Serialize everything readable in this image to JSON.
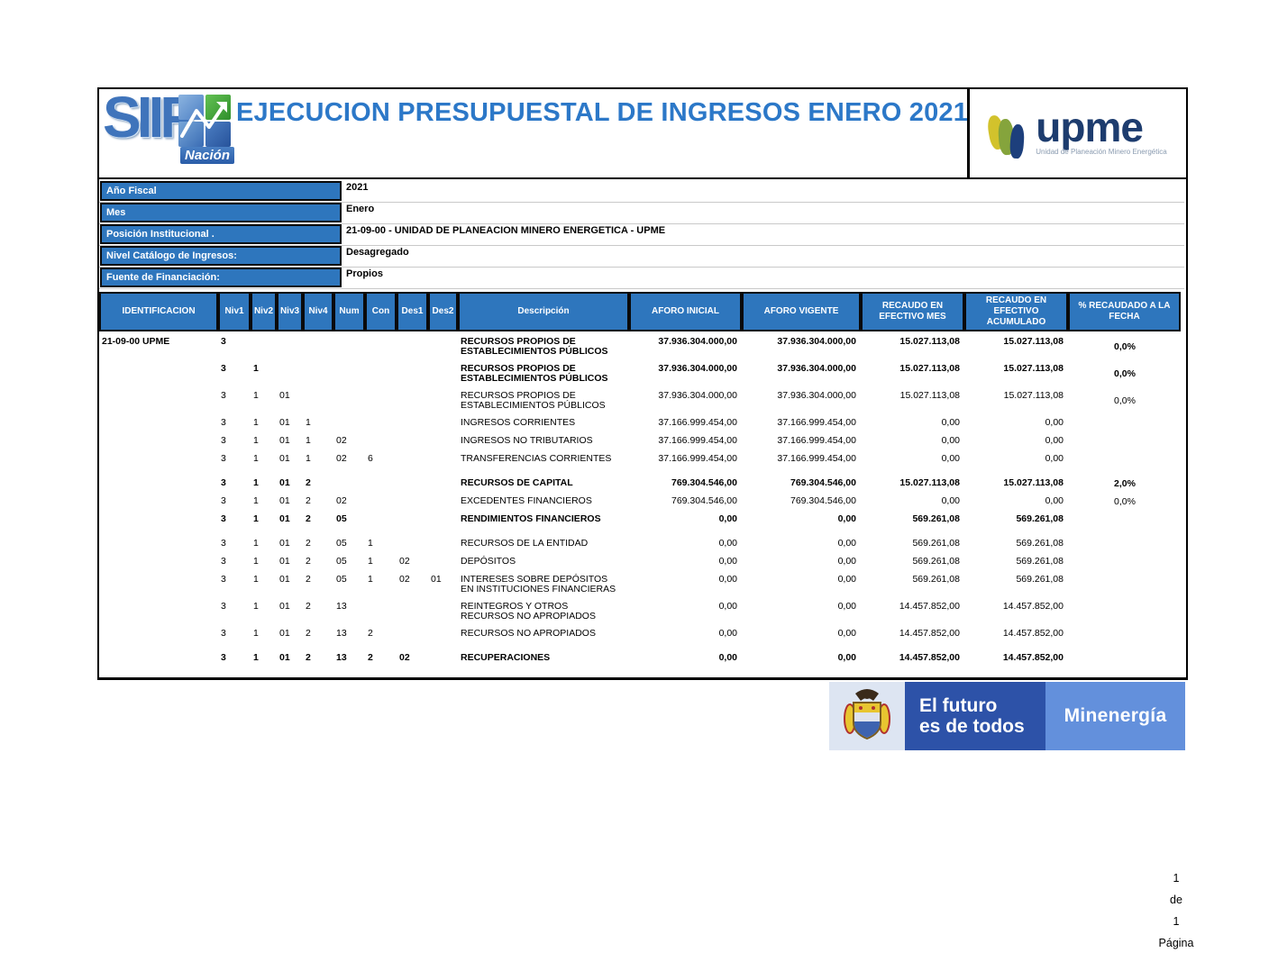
{
  "title": "EJECUCION PRESUPUESTAL DE INGRESOS ENERO 2021",
  "logos": {
    "siif": {
      "text": "SIIF",
      "sub": "Nación"
    },
    "upme": {
      "text": "upme",
      "sub": "Unidad de Planeación Minero Energética"
    },
    "banner": {
      "line1": "El futuro",
      "line2": "es de todos",
      "right": "Minenergía"
    }
  },
  "fields": [
    {
      "label": "Año Fiscal",
      "value": "2021"
    },
    {
      "label": "Mes",
      "value": "Enero"
    },
    {
      "label": "Posición Institucional .",
      "value": "21-09-00 - UNIDAD DE PLANEACION MINERO ENERGETICA - UPME"
    },
    {
      "label": "Nivel Catálogo de Ingresos:",
      "value": "Desagregado"
    },
    {
      "label": "Fuente de Financiación:",
      "value": "Propios"
    }
  ],
  "table": {
    "headers": [
      "IDENTIFICACION",
      "Niv1",
      "Niv2",
      "Niv3",
      "Niv4",
      "Num",
      "Con",
      "Des1",
      "Des2",
      "Descripción",
      "AFORO INICIAL",
      "AFORO VIGENTE",
      "RECAUDO EN EFECTIVO MES",
      "RECAUDO EN EFECTIVO ACUMULADO",
      "% RECAUDADO A LA FECHA"
    ],
    "rows": [
      {
        "id": "21-09-00 UPME",
        "niv1": "3",
        "desc": "RECURSOS PROPIOS DE ESTABLECIMIENTOS PÚBLICOS",
        "aforo_inicial": "37.936.304.000,00",
        "aforo_vigente": "37.936.304.000,00",
        "recaudo_mes": "15.027.113,08",
        "recaudo_acumulado": "15.027.113,08",
        "pct": "0,0%",
        "bold": true
      },
      {
        "niv1": "3",
        "niv2": "1",
        "desc": "RECURSOS PROPIOS DE ESTABLECIMIENTOS PÚBLICOS",
        "aforo_inicial": "37.936.304.000,00",
        "aforo_vigente": "37.936.304.000,00",
        "recaudo_mes": "15.027.113,08",
        "recaudo_acumulado": "15.027.113,08",
        "pct": "0,0%",
        "bold": true
      },
      {
        "niv1": "3",
        "niv2": "1",
        "niv3": "01",
        "desc": "RECURSOS PROPIOS DE ESTABLECIMIENTOS PÚBLICOS",
        "aforo_inicial": "37.936.304.000,00",
        "aforo_vigente": "37.936.304.000,00",
        "recaudo_mes": "15.027.113,08",
        "recaudo_acumulado": "15.027.113,08",
        "pct": "0,0%"
      },
      {
        "niv1": "3",
        "niv2": "1",
        "niv3": "01",
        "niv4": "1",
        "desc": "INGRESOS CORRIENTES",
        "aforo_inicial": "37.166.999.454,00",
        "aforo_vigente": "37.166.999.454,00",
        "recaudo_mes": "0,00",
        "recaudo_acumulado": "0,00"
      },
      {
        "niv1": "3",
        "niv2": "1",
        "niv3": "01",
        "niv4": "1",
        "num": "02",
        "desc": "INGRESOS NO TRIBUTARIOS",
        "aforo_inicial": "37.166.999.454,00",
        "aforo_vigente": "37.166.999.454,00",
        "recaudo_mes": "0,00",
        "recaudo_acumulado": "0,00"
      },
      {
        "niv1": "3",
        "niv2": "1",
        "niv3": "01",
        "niv4": "1",
        "num": "02",
        "con": "6",
        "desc": "TRANSFERENCIAS CORRIENTES",
        "aforo_inicial": "37.166.999.454,00",
        "aforo_vigente": "37.166.999.454,00",
        "recaudo_mes": "0,00",
        "recaudo_acumulado": "0,00"
      },
      {
        "niv1": "3",
        "niv2": "1",
        "niv3": "01",
        "niv4": "2",
        "desc": "RECURSOS DE CAPITAL",
        "aforo_inicial": "769.304.546,00",
        "aforo_vigente": "769.304.546,00",
        "recaudo_mes": "15.027.113,08",
        "recaudo_acumulado": "15.027.113,08",
        "pct": "2,0%",
        "bold": true,
        "spacer": true
      },
      {
        "niv1": "3",
        "niv2": "1",
        "niv3": "01",
        "niv4": "2",
        "num": "02",
        "desc": "EXCEDENTES FINANCIEROS",
        "aforo_inicial": "769.304.546,00",
        "aforo_vigente": "769.304.546,00",
        "recaudo_mes": "0,00",
        "recaudo_acumulado": "0,00",
        "pct": "0,0%"
      },
      {
        "niv1": "3",
        "niv2": "1",
        "niv3": "01",
        "niv4": "2",
        "num": "05",
        "desc": "RENDIMIENTOS FINANCIEROS",
        "aforo_inicial": "0,00",
        "aforo_vigente": "0,00",
        "recaudo_mes": "569.261,08",
        "recaudo_acumulado": "569.261,08",
        "bold": true
      },
      {
        "niv1": "3",
        "niv2": "1",
        "niv3": "01",
        "niv4": "2",
        "num": "05",
        "con": "1",
        "desc": "RECURSOS DE LA ENTIDAD",
        "aforo_inicial": "0,00",
        "aforo_vigente": "0,00",
        "recaudo_mes": "569.261,08",
        "recaudo_acumulado": "569.261,08",
        "spacer": true
      },
      {
        "niv1": "3",
        "niv2": "1",
        "niv3": "01",
        "niv4": "2",
        "num": "05",
        "con": "1",
        "des1": "02",
        "desc": "DEPÓSITOS",
        "aforo_inicial": "0,00",
        "aforo_vigente": "0,00",
        "recaudo_mes": "569.261,08",
        "recaudo_acumulado": "569.261,08"
      },
      {
        "niv1": "3",
        "niv2": "1",
        "niv3": "01",
        "niv4": "2",
        "num": "05",
        "con": "1",
        "des1": "02",
        "des2": "01",
        "desc": "INTERESES SOBRE DEPÓSITOS EN INSTITUCIONES FINANCIERAS",
        "aforo_inicial": "0,00",
        "aforo_vigente": "0,00",
        "recaudo_mes": "569.261,08",
        "recaudo_acumulado": "569.261,08"
      },
      {
        "niv1": "3",
        "niv2": "1",
        "niv3": "01",
        "niv4": "2",
        "num": "13",
        "desc": "REINTEGROS Y OTROS RECURSOS NO APROPIADOS",
        "aforo_inicial": "0,00",
        "aforo_vigente": "0,00",
        "recaudo_mes": "14.457.852,00",
        "recaudo_acumulado": "14.457.852,00"
      },
      {
        "niv1": "3",
        "niv2": "1",
        "niv3": "01",
        "niv4": "2",
        "num": "13",
        "con": "2",
        "desc": "RECURSOS NO APROPIADOS",
        "aforo_inicial": "0,00",
        "aforo_vigente": "0,00",
        "recaudo_mes": "14.457.852,00",
        "recaudo_acumulado": "14.457.852,00"
      },
      {
        "niv1": "3",
        "niv2": "1",
        "niv3": "01",
        "niv4": "2",
        "num": "13",
        "con": "2",
        "des1": "02",
        "desc": "RECUPERACIONES",
        "aforo_inicial": "0,00",
        "aforo_vigente": "0,00",
        "recaudo_mes": "14.457.852,00",
        "recaudo_acumulado": "14.457.852,00",
        "bold": true,
        "spacer": true
      }
    ]
  },
  "footer": {
    "page": "1",
    "of_label": "de",
    "total": "1",
    "page_label": "Página"
  },
  "colors": {
    "header_blue": "#2e76bd",
    "title_blue": "#2c78c8",
    "upme_navy": "#1d3c6e",
    "banner_blue": "#2d52a8",
    "banner_light_blue": "#6390dc",
    "banner_left_bg": "#dde5f2",
    "siif_blue": "#3f74bb",
    "siif_green": "#2f8f2b",
    "upme_yellow": "#d2c22c",
    "upme_green": "#85a43c"
  }
}
